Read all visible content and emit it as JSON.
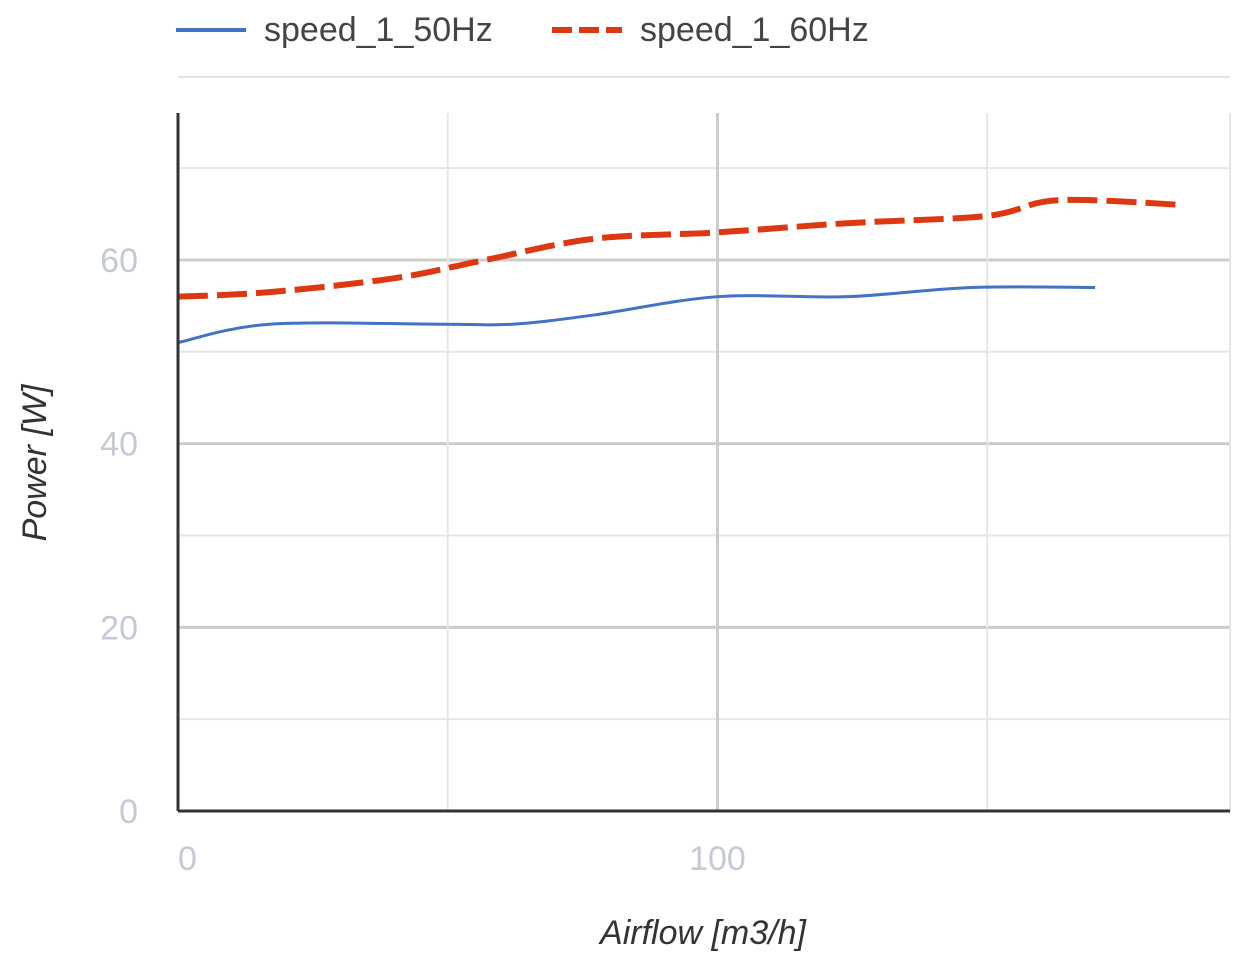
{
  "chart_data": {
    "type": "line",
    "xlabel": "Airflow [m3/h]",
    "ylabel": "Power [W]",
    "xlim": [
      0,
      195
    ],
    "ylim": [
      0,
      76
    ],
    "x_ticks": [
      0,
      100
    ],
    "y_ticks": [
      0,
      20,
      40,
      60
    ],
    "x_gridlines": [
      0,
      50,
      100,
      150,
      195
    ],
    "y_gridlines": [
      0,
      10,
      20,
      30,
      40,
      50,
      60,
      70
    ],
    "grid": true,
    "legend_position": "top",
    "series": [
      {
        "name": "speed_1_50Hz",
        "color": "#4472c4",
        "dash": "solid",
        "x": [
          0,
          17,
          49,
          62,
          77,
          100,
          124,
          147,
          170
        ],
        "y": [
          51,
          53,
          53,
          53,
          54,
          56,
          56,
          57,
          57
        ]
      },
      {
        "name": "speed_1_60Hz",
        "color": "#dc3912",
        "dash": "dashed",
        "x": [
          0,
          17,
          40,
          57,
          77,
          100,
          124,
          150,
          163,
          186
        ],
        "y": [
          56,
          56.5,
          58,
          60,
          62.3,
          63,
          64,
          64.8,
          66.5,
          66
        ]
      }
    ]
  }
}
